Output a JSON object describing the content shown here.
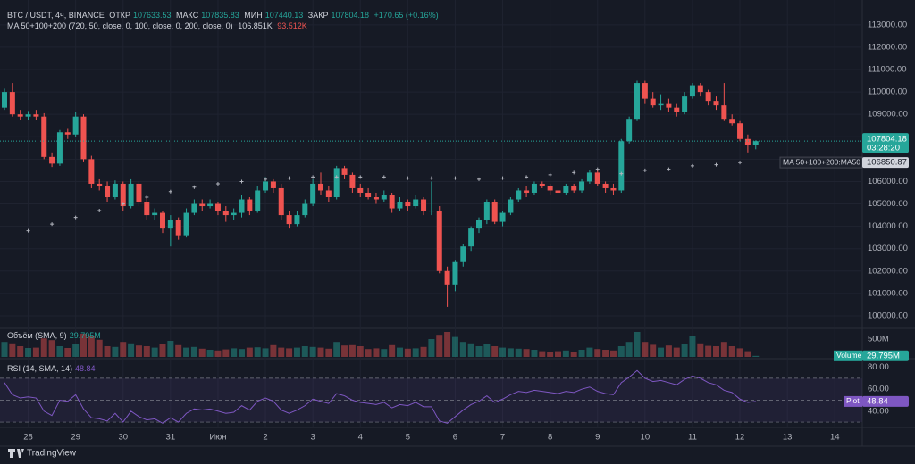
{
  "header": {
    "open_label": "ОТКР",
    "high_label": "МАКС",
    "low_label": "МИН",
    "close_label": "ЗАКР",
    "change": "+170.65 (+0.16%)",
    "ma_legend": "MA 50+100+200 (720, 50, close, 0, 100, close, 0, 200, close, 0)",
    "ma_value_1": "106.851K",
    "ma_value_2": "93.512K",
    "countdown": "03:28:20",
    "brand": "TradingView"
  },
  "chart_data": {
    "type": "candlestick",
    "title": "BTC / USDT, 4ч, BINANCE",
    "up_color": "#26a69a",
    "down_color": "#ef5350",
    "grid": true,
    "open": [
      109300,
      110000,
      109000,
      108900,
      109000,
      108900,
      107100,
      106800,
      108200,
      108100,
      108900,
      107000,
      105900,
      105800,
      105300,
      105900,
      104900,
      105900,
      105100,
      104500,
      104600,
      103900,
      104300,
      103600,
      104600,
      105000,
      104900,
      105000,
      104700,
      104500,
      104600,
      105200,
      104700,
      105600,
      106000,
      105700,
      104500,
      104100,
      104500,
      105000,
      105900,
      105600,
      105300,
      106600,
      106300,
      105700,
      105500,
      105300,
      105200,
      105400,
      104800,
      105100,
      104900,
      105200,
      104700,
      104700,
      102000,
      101400,
      102400,
      103100,
      103900,
      104300,
      105100,
      104200,
      104600,
      105200,
      105600,
      105500,
      105900,
      105800,
      105600,
      105500,
      105800,
      105600,
      106000,
      106400,
      105900,
      105700,
      105600,
      107800,
      108800,
      110400,
      109700,
      109400,
      109500,
      109300,
      109100,
      109800,
      110300,
      110000,
      109600,
      109400,
      108800,
      108600,
      107900,
      107633.53
    ],
    "high": [
      110150,
      110400,
      109200,
      109150,
      109200,
      109050,
      107300,
      108300,
      108350,
      109100,
      109000,
      107150,
      106100,
      106000,
      106050,
      106000,
      106100,
      106000,
      105300,
      104800,
      104700,
      104500,
      104400,
      104800,
      105200,
      105200,
      105200,
      105100,
      104900,
      104800,
      105400,
      105300,
      105800,
      106200,
      106100,
      105900,
      104700,
      104700,
      105200,
      106100,
      106400,
      105800,
      106700,
      106700,
      106400,
      105900,
      105700,
      105500,
      105600,
      105500,
      105300,
      105200,
      105400,
      105300,
      106000,
      104900,
      102200,
      102500,
      103200,
      104000,
      104400,
      105200,
      105200,
      104700,
      105300,
      105700,
      105800,
      106000,
      106000,
      105900,
      105800,
      105900,
      105900,
      106100,
      106500,
      106500,
      106000,
      105900,
      107900,
      108900,
      110500,
      110500,
      110000,
      109900,
      109700,
      109500,
      110000,
      110400,
      110400,
      110100,
      109800,
      110400,
      109000,
      108700,
      108100,
      107835.83
    ],
    "low": [
      109200,
      108900,
      108750,
      108750,
      108750,
      107000,
      106650,
      106700,
      107900,
      108000,
      106900,
      105700,
      105600,
      105100,
      105200,
      104700,
      104800,
      104900,
      104300,
      104300,
      103700,
      103100,
      103400,
      103500,
      104500,
      104700,
      104800,
      104500,
      104200,
      104300,
      104400,
      104500,
      104600,
      105500,
      105500,
      104300,
      103900,
      104000,
      104400,
      104900,
      105400,
      105100,
      105200,
      106100,
      105500,
      105300,
      105200,
      105000,
      105100,
      104600,
      104700,
      104700,
      104800,
      104500,
      104500,
      101900,
      100400,
      101100,
      102200,
      102900,
      103700,
      104100,
      104100,
      104000,
      104500,
      105100,
      105300,
      105400,
      105700,
      105400,
      105400,
      105400,
      105500,
      105500,
      105900,
      105800,
      105500,
      105400,
      105500,
      107700,
      108700,
      109500,
      109300,
      109200,
      109100,
      108900,
      109000,
      109700,
      109800,
      109400,
      109200,
      108700,
      108500,
      107800,
      107300,
      107440.13
    ],
    "close": [
      110000,
      109000,
      108900,
      109000,
      108900,
      107100,
      106800,
      108200,
      108100,
      108900,
      107000,
      105900,
      105800,
      105300,
      105900,
      104900,
      105900,
      105100,
      104500,
      104600,
      103900,
      104300,
      103600,
      104600,
      105000,
      104900,
      105000,
      104700,
      104500,
      104600,
      105200,
      104700,
      105600,
      106000,
      105700,
      104500,
      104100,
      104500,
      105000,
      105900,
      105600,
      105300,
      106600,
      106300,
      105700,
      105500,
      105300,
      105200,
      105400,
      104800,
      105100,
      104900,
      105200,
      104700,
      104700,
      102000,
      101400,
      102400,
      103100,
      103900,
      104300,
      105100,
      104200,
      104600,
      105200,
      105600,
      105500,
      105900,
      105800,
      105600,
      105500,
      105800,
      105600,
      106000,
      106400,
      105900,
      105700,
      105600,
      107800,
      108800,
      110400,
      109700,
      109400,
      109500,
      109300,
      109100,
      109800,
      110300,
      110000,
      109600,
      109400,
      108800,
      108600,
      107900,
      107633.53,
      107804.18
    ],
    "ylim": [
      99440,
      114110
    ],
    "yticks": [
      {
        "value": 100000,
        "label": "100000.00"
      },
      {
        "value": 101000,
        "label": "101000.00"
      },
      {
        "value": 102000,
        "label": "102000.00"
      },
      {
        "value": 103000,
        "label": "103000.00"
      },
      {
        "value": 104000,
        "label": "104000.00"
      },
      {
        "value": 105000,
        "label": "105000.00"
      },
      {
        "value": 106000,
        "label": "106000.00"
      },
      {
        "value": 107000,
        "label": "107000.00"
      },
      {
        "value": 108000,
        "label": "108000.00"
      },
      {
        "value": 109000,
        "label": "109000.00"
      },
      {
        "value": 110000,
        "label": "110000.00"
      },
      {
        "value": 111000,
        "label": "111000.00"
      },
      {
        "value": 112000,
        "label": "112000.00"
      },
      {
        "value": 113000,
        "label": "113000.00"
      }
    ],
    "time_labels": [
      "28",
      "29",
      "30",
      "31",
      "Июн",
      "2",
      "3",
      "4",
      "5",
      "6",
      "7",
      "8",
      "9",
      "10",
      "11",
      "12",
      "13",
      "14"
    ],
    "ma": {
      "name": "MA 50+100+200:MA50",
      "color": "#b2b5be",
      "last": 106850.87,
      "values": [
        null,
        null,
        null,
        103800,
        null,
        null,
        104100,
        null,
        null,
        104400,
        null,
        null,
        104700,
        null,
        null,
        105000,
        null,
        null,
        105300,
        null,
        null,
        105550,
        null,
        null,
        105750,
        null,
        null,
        105900,
        null,
        null,
        106000,
        null,
        null,
        106100,
        null,
        null,
        106150,
        null,
        null,
        106200,
        null,
        null,
        106200,
        null,
        null,
        106200,
        null,
        null,
        106200,
        null,
        null,
        106150,
        null,
        null,
        106150,
        null,
        null,
        106150,
        null,
        null,
        106100,
        null,
        null,
        106150,
        null,
        null,
        106200,
        null,
        null,
        106300,
        null,
        null,
        106400,
        null,
        null,
        106550,
        null,
        null,
        106350,
        null,
        null,
        106500,
        null,
        null,
        106550,
        null,
        null,
        106700,
        null,
        null,
        106750,
        null,
        null,
        106850,
        null,
        null
      ]
    },
    "volume": {
      "title": "Объём (SMA, 9)",
      "value_label": "29.795M",
      "badge": "Volume",
      "ylim": [
        0,
        750
      ],
      "yticks": [
        {
          "value": 500,
          "label": "500M"
        }
      ],
      "values": [
        420,
        380,
        300,
        250,
        260,
        520,
        470,
        300,
        250,
        350,
        650,
        600,
        480,
        300,
        280,
        420,
        380,
        320,
        300,
        260,
        360,
        450,
        330,
        260,
        280,
        230,
        200,
        180,
        210,
        240,
        220,
        260,
        270,
        240,
        330,
        260,
        240,
        260,
        300,
        280,
        260,
        230,
        420,
        320,
        330,
        300,
        220,
        240,
        220,
        330,
        260,
        230,
        240,
        280,
        500,
        620,
        700,
        560,
        420,
        380,
        300,
        360,
        300,
        260,
        240,
        230,
        220,
        200,
        160,
        140,
        160,
        180,
        150,
        200,
        260,
        220,
        200,
        180,
        300,
        420,
        700,
        420,
        340,
        260,
        320,
        260,
        350,
        600,
        380,
        310,
        300,
        420,
        300,
        240,
        160,
        29.795
      ]
    },
    "rsi": {
      "title": "RSI (14, SMA, 14)",
      "badge": "Plot",
      "color": "#7e57c2",
      "ylim": [
        26,
        87
      ],
      "levels": [
        70,
        50,
        30
      ],
      "yticks": [
        {
          "value": 80,
          "label": "80.00"
        },
        {
          "value": 60,
          "label": "60.00"
        },
        {
          "value": 40,
          "label": "40.00"
        }
      ],
      "values": [
        66,
        55,
        52,
        53,
        52,
        40,
        36,
        50,
        49,
        55,
        42,
        34,
        33,
        31,
        38,
        30,
        40,
        35,
        32,
        33,
        29,
        34,
        30,
        38,
        42,
        41,
        42,
        40,
        38,
        39,
        45,
        41,
        49,
        52,
        49,
        41,
        38,
        41,
        45,
        51,
        49,
        47,
        56,
        54,
        50,
        48,
        47,
        46,
        48,
        43,
        46,
        45,
        48,
        44,
        44,
        31,
        29,
        35,
        41,
        46,
        49,
        54,
        48,
        51,
        55,
        58,
        57,
        59,
        58,
        57,
        56,
        58,
        57,
        60,
        62,
        58,
        56,
        55,
        66,
        71,
        77,
        70,
        67,
        68,
        66,
        64,
        69,
        72,
        70,
        66,
        64,
        59,
        57,
        51,
        48,
        48.84
      ]
    }
  }
}
